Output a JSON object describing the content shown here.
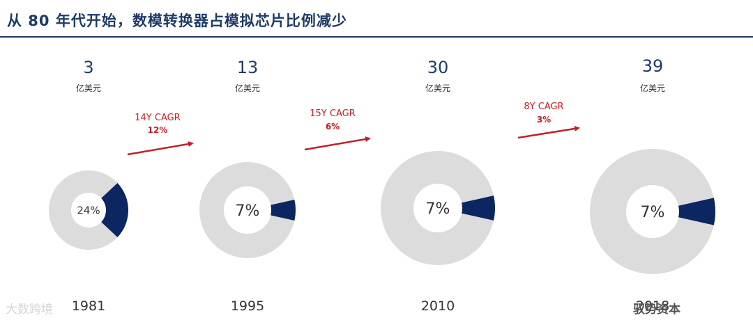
{
  "title": "从 80 年代开始，数模转换器占模拟芯片比例减少",
  "chart_data": {
    "type": "donut",
    "title": "从 80 年代开始，数模转换器占模拟芯片比例减少",
    "unit": "亿美元",
    "colors": {
      "share": "#0b2661",
      "rest": "#dcdcdc",
      "arrow": "#c0202a",
      "title": "#1f3a66"
    },
    "items": [
      {
        "year": "1981",
        "market": 3,
        "share_pct": 24,
        "share_label": "24%"
      },
      {
        "year": "1995",
        "market": 13,
        "share_pct": 7,
        "share_label": "7%"
      },
      {
        "year": "2010",
        "market": 30,
        "share_pct": 7,
        "share_label": "7%"
      },
      {
        "year": "2018",
        "market": 39,
        "share_pct": 7,
        "share_label": "7%"
      }
    ],
    "growth": [
      {
        "label": "14Y CAGR",
        "value": "12%"
      },
      {
        "label": "15Y CAGR",
        "value": "6%"
      },
      {
        "label": "8Y CAGR",
        "value": "3%"
      }
    ]
  },
  "watermarks": {
    "left": "大数跨境",
    "right": "驭势资本"
  }
}
